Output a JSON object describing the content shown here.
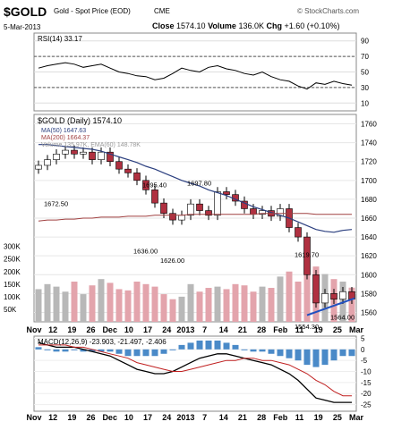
{
  "header": {
    "ticker": "$GOLD",
    "name": "Gold - Spot Price (EOD)",
    "exchange": "CME",
    "date": "5-Mar-2013",
    "close_label": "Close",
    "close_value": "1574.10",
    "volume_label": "Volume",
    "volume_value": "136.0K",
    "chg_label": "Chg",
    "chg_value": "+1.60 (+0.10%)",
    "source": "© StockCharts.com"
  },
  "panels": {
    "rsi": {
      "label": "RSI(14) 33.17",
      "ticks": [
        "90",
        "70",
        "50",
        "30",
        "10"
      ],
      "levels": [
        90,
        70,
        50,
        30,
        10
      ]
    },
    "price": {
      "title": "$GOLD (Daily) 1574.10",
      "legend": [
        {
          "text": "MA(50) 1647.63",
          "color": "#2b3f7f"
        },
        {
          "text": "MA(200) 1664.37",
          "color": "#a04040"
        },
        {
          "text": "Volume 135.97K, EMA(60) 148.78K",
          "color": "#999999"
        }
      ],
      "ticks": [
        "1760",
        "1740",
        "1720",
        "1700",
        "1680",
        "1660",
        "1640",
        "1620",
        "1600",
        "1580",
        "1560"
      ],
      "volume_ticks": [
        "300K",
        "250K",
        "200K",
        "150K",
        "100K",
        "50K"
      ],
      "annotations": [
        "1672.50",
        "1695.40",
        "1697.80",
        "1636.00",
        "1626.00",
        "1619.70",
        "1564.00",
        "1554.30"
      ]
    },
    "macd": {
      "label": "MACD(12,26,9) -23.903, -21.497, -2.406",
      "ticks": [
        "5",
        "0",
        "-5",
        "-10",
        "-15",
        "-20",
        "-25"
      ]
    }
  },
  "x_axis_labels": [
    "Nov",
    "12",
    "19",
    "26",
    "Dec",
    "10",
    "17",
    "24",
    "2013",
    "7",
    "14",
    "21",
    "28",
    "Feb",
    "11",
    "19",
    "25",
    "Mar"
  ],
  "colors": {
    "up": "#ffffff",
    "down": "#b03040",
    "volume": "#b8b8b8",
    "ma50": "#2b3f7f",
    "ma200": "#a04040",
    "trend": "#2050c0",
    "macd": "#000000",
    "signal": "#c02020",
    "hist": "#4a8ac8"
  },
  "chart_data": {
    "type": "candlestick",
    "x_dates": [
      "Nov",
      "Nov",
      "12",
      "12",
      "19",
      "19",
      "26",
      "26",
      "Dec",
      "Dec",
      "10",
      "10",
      "17",
      "17",
      "24",
      "24",
      "2013",
      "2013",
      "7",
      "7",
      "14",
      "14",
      "21",
      "21",
      "28",
      "28",
      "Feb",
      "Feb",
      "11",
      "11",
      "19",
      "19",
      "25",
      "25",
      "Mar",
      "Mar"
    ],
    "close": [
      1716,
      1722,
      1728,
      1732,
      1728,
      1730,
      1722,
      1730,
      1720,
      1712,
      1708,
      1700,
      1690,
      1676,
      1665,
      1658,
      1663,
      1675,
      1668,
      1663,
      1688,
      1685,
      1678,
      1670,
      1664,
      1668,
      1662,
      1670,
      1650,
      1640,
      1600,
      1570,
      1580,
      1574,
      1582,
      1574
    ],
    "ma50": [
      1738,
      1738,
      1737,
      1736,
      1735,
      1734,
      1733,
      1731,
      1728,
      1725,
      1722,
      1719,
      1715,
      1712,
      1708,
      1704,
      1700,
      1697,
      1694,
      1690,
      1687,
      1684,
      1680,
      1676,
      1672,
      1669,
      1666,
      1663,
      1660,
      1656,
      1652,
      1648,
      1646,
      1645,
      1647,
      1648
    ],
    "ma200": [
      1657,
      1658,
      1658,
      1659,
      1659,
      1660,
      1660,
      1661,
      1661,
      1661,
      1662,
      1662,
      1662,
      1663,
      1663,
      1663,
      1663,
      1664,
      1664,
      1664,
      1664,
      1664,
      1664,
      1664,
      1664,
      1665,
      1665,
      1665,
      1665,
      1665,
      1665,
      1664,
      1664,
      1664,
      1664,
      1664
    ],
    "volume_k": [
      130,
      150,
      140,
      120,
      160,
      110,
      145,
      170,
      155,
      130,
      125,
      160,
      150,
      140,
      110,
      90,
      100,
      150,
      120,
      135,
      140,
      130,
      150,
      145,
      120,
      140,
      135,
      180,
      200,
      160,
      240,
      220,
      190,
      170,
      160,
      136
    ],
    "rsi": [
      55,
      58,
      60,
      62,
      60,
      56,
      58,
      60,
      55,
      50,
      48,
      45,
      44,
      40,
      42,
      48,
      55,
      52,
      50,
      56,
      58,
      54,
      52,
      48,
      46,
      50,
      44,
      40,
      38,
      32,
      28,
      36,
      34,
      38,
      35,
      33
    ],
    "macd": [
      3,
      2,
      1,
      1,
      1,
      0,
      -1,
      -2,
      -3,
      -5,
      -7,
      -9,
      -10,
      -11,
      -11,
      -10,
      -8,
      -6,
      -4,
      -3,
      -2,
      -2,
      -3,
      -4,
      -5,
      -6,
      -7,
      -9,
      -11,
      -14,
      -18,
      -22,
      -23,
      -24,
      -24,
      -24
    ],
    "signal": [
      2,
      2,
      2,
      2,
      1,
      1,
      0,
      -1,
      -2,
      -3,
      -4,
      -6,
      -7,
      -8,
      -9,
      -10,
      -10,
      -9,
      -8,
      -7,
      -6,
      -5,
      -5,
      -4,
      -4,
      -5,
      -5,
      -6,
      -7,
      -9,
      -11,
      -14,
      -16,
      -19,
      -21,
      -21
    ],
    "ylim_price": [
      1550,
      1770
    ],
    "ylim_rsi": [
      0,
      100
    ],
    "ylim_macd": [
      -28,
      6
    ]
  }
}
